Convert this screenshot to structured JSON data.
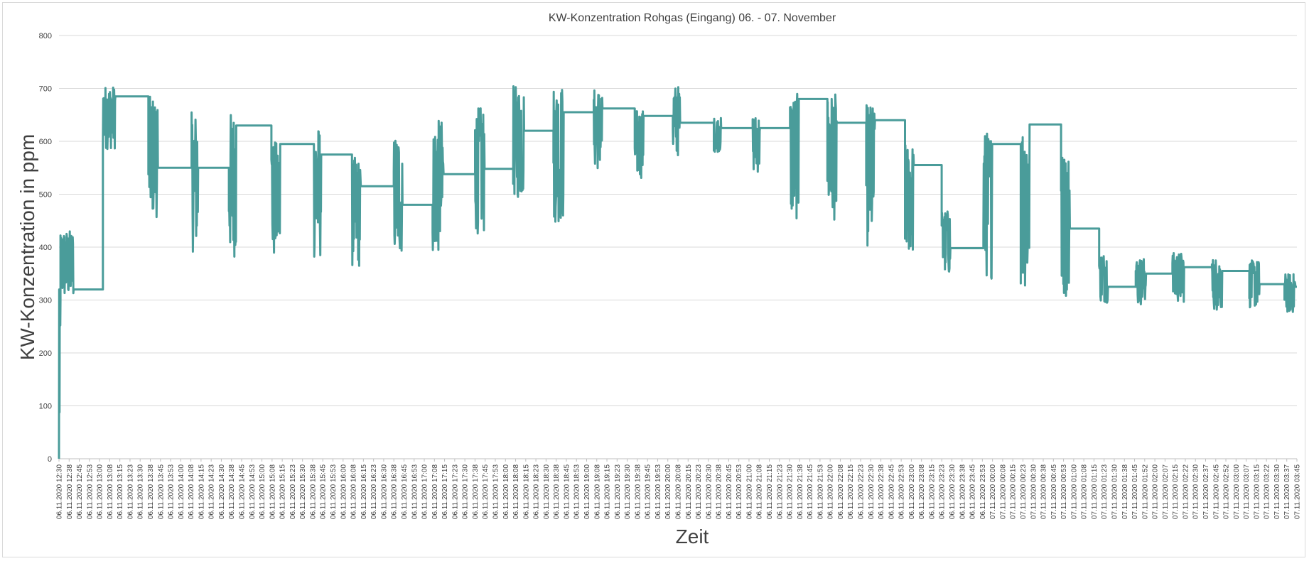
{
  "chart_data": {
    "type": "line",
    "title": "KW-Konzentration Rohgas (Eingang) 06. - 07. November",
    "xlabel": "Zeit",
    "ylabel": "KW-Konzentration in ppm",
    "ylim": [
      0,
      800
    ],
    "yticks": [
      0,
      100,
      200,
      300,
      400,
      500,
      600,
      700,
      800
    ],
    "grid": true,
    "color": "#4a9c9a",
    "x_categories": [
      "06.11.2020 12:30",
      "06.11.2020 12:38",
      "06.11.2020 12:45",
      "06.11.2020 12:53",
      "06.11.2020 13:00",
      "06.11.2020 13:08",
      "06.11.2020 13:15",
      "06.11.2020 13:23",
      "06.11.2020 13:30",
      "06.11.2020 13:38",
      "06.11.2020 13:45",
      "06.11.2020 13:53",
      "06.11.2020 14:00",
      "06.11.2020 14:08",
      "06.11.2020 14:15",
      "06.11.2020 14:23",
      "06.11.2020 14:30",
      "06.11.2020 14:38",
      "06.11.2020 14:45",
      "06.11.2020 14:53",
      "06.11.2020 15:00",
      "06.11.2020 15:08",
      "06.11.2020 15:15",
      "06.11.2020 15:23",
      "06.11.2020 15:30",
      "06.11.2020 15:38",
      "06.11.2020 15:45",
      "06.11.2020 15:53",
      "06.11.2020 16:00",
      "06.11.2020 16:08",
      "06.11.2020 16:15",
      "06.11.2020 16:23",
      "06.11.2020 16:30",
      "06.11.2020 16:38",
      "06.11.2020 16:45",
      "06.11.2020 16:53",
      "06.11.2020 17:00",
      "06.11.2020 17:08",
      "06.11.2020 17:15",
      "06.11.2020 17:23",
      "06.11.2020 17:30",
      "06.11.2020 17:38",
      "06.11.2020 17:45",
      "06.11.2020 17:53",
      "06.11.2020 18:00",
      "06.11.2020 18:08",
      "06.11.2020 18:15",
      "06.11.2020 18:23",
      "06.11.2020 18:30",
      "06.11.2020 18:38",
      "06.11.2020 18:45",
      "06.11.2020 18:53",
      "06.11.2020 19:00",
      "06.11.2020 19:08",
      "06.11.2020 19:15",
      "06.11.2020 19:23",
      "06.11.2020 19:30",
      "06.11.2020 19:38",
      "06.11.2020 19:45",
      "06.11.2020 19:53",
      "06.11.2020 20:00",
      "06.11.2020 20:08",
      "06.11.2020 20:15",
      "06.11.2020 20:23",
      "06.11.2020 20:30",
      "06.11.2020 20:38",
      "06.11.2020 20:45",
      "06.11.2020 20:53",
      "06.11.2020 21:00",
      "06.11.2020 21:08",
      "06.11.2020 21:15",
      "06.11.2020 21:23",
      "06.11.2020 21:30",
      "06.11.2020 21:38",
      "06.11.2020 21:45",
      "06.11.2020 21:53",
      "06.11.2020 22:00",
      "06.11.2020 22:08",
      "06.11.2020 22:15",
      "06.11.2020 22:23",
      "06.11.2020 22:30",
      "06.11.2020 22:38",
      "06.11.2020 22:45",
      "06.11.2020 22:53",
      "06.11.2020 23:00",
      "06.11.2020 23:08",
      "06.11.2020 23:15",
      "06.11.2020 23:23",
      "06.11.2020 23:30",
      "06.11.2020 23:38",
      "06.11.2020 23:45",
      "06.11.2020 23:53",
      "07.11.2020 00:00",
      "07.11.2020 00:08",
      "07.11.2020 00:15",
      "07.11.2020 00:23",
      "07.11.2020 00:30",
      "07.11.2020 00:38",
      "07.11.2020 00:45",
      "07.11.2020 00:53",
      "07.11.2020 01:00",
      "07.11.2020 01:08",
      "07.11.2020 01:15",
      "07.11.2020 01:23",
      "07.11.2020 01:30",
      "07.11.2020 01:38",
      "07.11.2020 01:45",
      "07.11.2020 01:52",
      "07.11.2020 02:00",
      "07.11.2020 02:07",
      "07.11.2020 02:15",
      "07.11.2020 02:22",
      "07.11.2020 02:30",
      "07.11.2020 02:37",
      "07.11.2020 02:45",
      "07.11.2020 02:52",
      "07.11.2020 03:00",
      "07.11.2020 03:07",
      "07.11.2020 03:15",
      "07.11.2020 03:22",
      "07.11.2020 03:30",
      "07.11.2020 03:37",
      "07.11.2020 03:45"
    ],
    "series": [
      {
        "name": "KW-Konzentration",
        "segments": [
          {
            "x0": 0.0,
            "x1": 0.2,
            "lo": 0,
            "hi": 320,
            "flat": 300
          },
          {
            "x0": 0.2,
            "x1": 2.0,
            "lo": 300,
            "hi": 432,
            "flat": 320
          },
          {
            "x0": 6.0,
            "x1": 7.7,
            "lo": 585,
            "hi": 705,
            "flat": 685
          },
          {
            "x0": 12.2,
            "x1": 13.5,
            "lo": 455,
            "hi": 685,
            "flat": 550
          },
          {
            "x0": 18.1,
            "x1": 19.0,
            "lo": 390,
            "hi": 655,
            "flat": 550
          },
          {
            "x0": 23.2,
            "x1": 24.2,
            "lo": 380,
            "hi": 655,
            "flat": 630
          },
          {
            "x0": 29.0,
            "x1": 30.2,
            "lo": 370,
            "hi": 600,
            "flat": 595
          },
          {
            "x0": 34.8,
            "x1": 35.8,
            "lo": 375,
            "hi": 630,
            "flat": 575
          },
          {
            "x0": 40.0,
            "x1": 41.2,
            "lo": 360,
            "hi": 570,
            "flat": 515
          },
          {
            "x0": 45.7,
            "x1": 46.9,
            "lo": 380,
            "hi": 615,
            "flat": 480
          },
          {
            "x0": 51.0,
            "x1": 52.5,
            "lo": 385,
            "hi": 640,
            "flat": 538
          },
          {
            "x0": 56.8,
            "x1": 58.1,
            "lo": 425,
            "hi": 665,
            "flat": 548
          },
          {
            "x0": 62.0,
            "x1": 63.5,
            "lo": 490,
            "hi": 705,
            "flat": 620
          },
          {
            "x0": 67.5,
            "x1": 68.9,
            "lo": 445,
            "hi": 708,
            "flat": 655
          },
          {
            "x0": 73.0,
            "x1": 74.2,
            "lo": 545,
            "hi": 700,
            "flat": 662
          },
          {
            "x0": 78.6,
            "x1": 79.8,
            "lo": 530,
            "hi": 660,
            "flat": 648
          },
          {
            "x0": 83.8,
            "x1": 84.8,
            "lo": 570,
            "hi": 706,
            "flat": 635
          },
          {
            "x0": 89.4,
            "x1": 90.4,
            "lo": 580,
            "hi": 645,
            "flat": 625
          },
          {
            "x0": 94.7,
            "x1": 95.7,
            "lo": 540,
            "hi": 650,
            "flat": 625
          },
          {
            "x0": 99.8,
            "x1": 101.0,
            "lo": 450,
            "hi": 690,
            "flat": 680
          },
          {
            "x0": 104.9,
            "x1": 106.2,
            "lo": 450,
            "hi": 690,
            "flat": 635
          },
          {
            "x0": 110.2,
            "x1": 111.4,
            "lo": 400,
            "hi": 670,
            "flat": 640
          },
          {
            "x0": 115.5,
            "x1": 116.7,
            "lo": 385,
            "hi": 595,
            "flat": 555
          },
          {
            "x0": 120.5,
            "x1": 121.7,
            "lo": 345,
            "hi": 470,
            "flat": 398
          },
          {
            "x0": 126.2,
            "x1": 127.4,
            "lo": 340,
            "hi": 620,
            "flat": 595
          },
          {
            "x0": 131.3,
            "x1": 132.5,
            "lo": 320,
            "hi": 640,
            "flat": 632
          },
          {
            "x0": 136.8,
            "x1": 138.0,
            "lo": 305,
            "hi": 580,
            "flat": 435
          },
          {
            "x0": 142.0,
            "x1": 143.2,
            "lo": 295,
            "hi": 390,
            "flat": 325
          },
          {
            "x0": 147.0,
            "x1": 148.4,
            "lo": 290,
            "hi": 380,
            "flat": 350
          },
          {
            "x0": 152.0,
            "x1": 153.6,
            "lo": 295,
            "hi": 390,
            "flat": 362
          },
          {
            "x0": 157.4,
            "x1": 158.8,
            "lo": 280,
            "hi": 380,
            "flat": 355
          },
          {
            "x0": 162.5,
            "x1": 163.9,
            "lo": 285,
            "hi": 375,
            "flat": 330
          },
          {
            "x0": 167.3,
            "x1": 168.8,
            "lo": 275,
            "hi": 350,
            "flat": 325
          }
        ],
        "x_end": 169.0,
        "end_value": 325
      }
    ]
  }
}
